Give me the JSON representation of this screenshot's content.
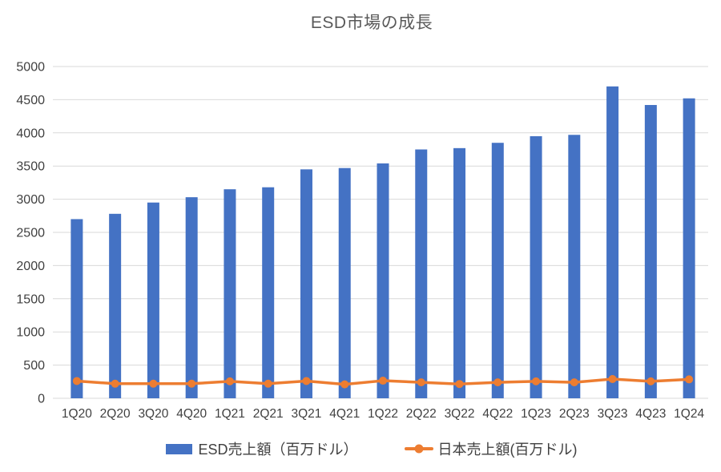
{
  "chart_data": {
    "type": "bar",
    "title": "ESD市場の成長",
    "categories": [
      "1Q20",
      "2Q20",
      "3Q20",
      "4Q20",
      "1Q21",
      "2Q21",
      "3Q21",
      "4Q21",
      "1Q22",
      "2Q22",
      "3Q22",
      "4Q22",
      "1Q23",
      "2Q23",
      "3Q23",
      "4Q23",
      "1Q24"
    ],
    "series": [
      {
        "name": "ESD売上額（百万ドル）",
        "type": "bar",
        "color": "#4472C4",
        "values": [
          2700,
          2780,
          2950,
          3030,
          3150,
          3180,
          3450,
          3470,
          3540,
          3750,
          3770,
          3850,
          3950,
          3970,
          4700,
          4420,
          4520
        ]
      },
      {
        "name": "日本売上額(百万ドル)",
        "type": "line",
        "color": "#ED7D31",
        "values": [
          260,
          220,
          220,
          220,
          255,
          220,
          260,
          210,
          265,
          240,
          215,
          240,
          255,
          240,
          290,
          255,
          285
        ]
      }
    ],
    "xlabel": "",
    "ylabel": "",
    "ylim": [
      0,
      5000
    ],
    "y_ticks": [
      0,
      500,
      1000,
      1500,
      2000,
      2500,
      3000,
      3500,
      4000,
      4500,
      5000
    ],
    "grid": "horizontal",
    "legend_position": "bottom"
  },
  "colors": {
    "bar_series": "#4472C4",
    "line_series": "#ED7D31",
    "gridline": "#D9D9D9",
    "axis_line": "#D0D0D0",
    "title_text": "#595959",
    "axis_text": "#404040",
    "background": "#FFFFFF"
  }
}
